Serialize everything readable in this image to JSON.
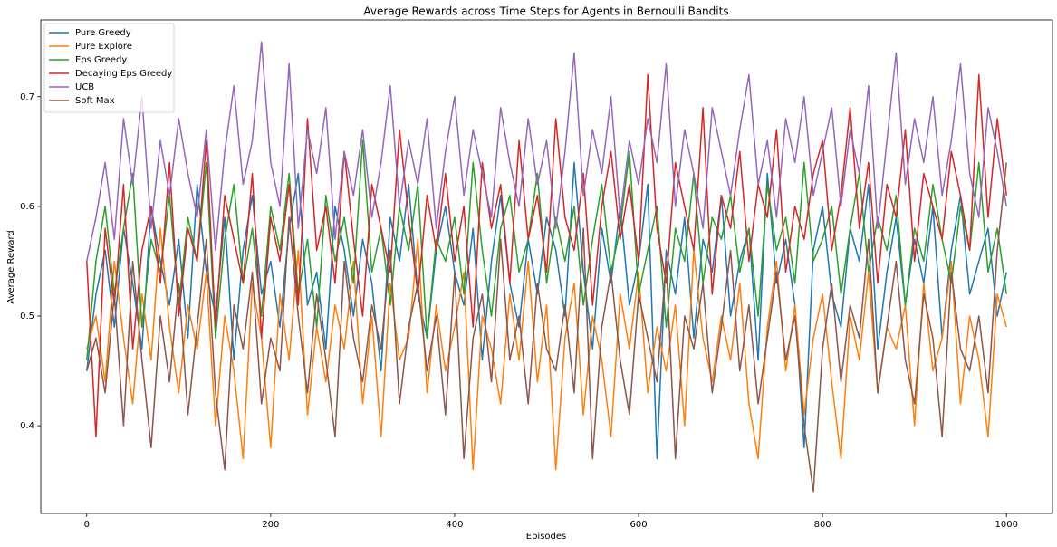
{
  "chart_data": {
    "type": "line",
    "title": "Average Rewards across Time Steps for Agents in Bernoulli Bandits",
    "xlabel": "Episodes",
    "ylabel": "Average Reward",
    "xlim": [
      -50,
      1050
    ],
    "ylim": [
      0.32,
      0.77
    ],
    "xticks": [
      0,
      200,
      400,
      600,
      800,
      1000
    ],
    "yticks": [
      0.4,
      0.5,
      0.6,
      0.7
    ],
    "legend": "upper left",
    "x": [
      0,
      10,
      20,
      30,
      40,
      50,
      60,
      70,
      80,
      90,
      100,
      110,
      120,
      130,
      140,
      150,
      160,
      170,
      180,
      190,
      200,
      210,
      220,
      230,
      240,
      250,
      260,
      270,
      280,
      290,
      300,
      310,
      320,
      330,
      340,
      350,
      360,
      370,
      380,
      390,
      400,
      410,
      420,
      430,
      440,
      450,
      460,
      470,
      480,
      490,
      500,
      510,
      520,
      530,
      540,
      550,
      560,
      570,
      580,
      590,
      600,
      610,
      620,
      630,
      640,
      650,
      660,
      670,
      680,
      690,
      700,
      710,
      720,
      730,
      740,
      750,
      760,
      770,
      780,
      790,
      800,
      810,
      820,
      830,
      840,
      850,
      860,
      870,
      880,
      890,
      900,
      910,
      920,
      930,
      940,
      950,
      960,
      970,
      980,
      990,
      1000
    ],
    "series": [
      {
        "name": "Pure Greedy",
        "color": "#1f77b4",
        "values": [
          0.45,
          0.52,
          0.56,
          0.49,
          0.58,
          0.53,
          0.47,
          0.6,
          0.55,
          0.51,
          0.57,
          0.48,
          0.62,
          0.54,
          0.5,
          0.59,
          0.46,
          0.56,
          0.61,
          0.52,
          0.55,
          0.49,
          0.58,
          0.63,
          0.51,
          0.54,
          0.47,
          0.6,
          0.56,
          0.5,
          0.57,
          0.53,
          0.45,
          0.59,
          0.55,
          0.62,
          0.52,
          0.48,
          0.56,
          0.6,
          0.54,
          0.51,
          0.58,
          0.46,
          0.55,
          0.61,
          0.53,
          0.49,
          0.57,
          0.52,
          0.59,
          0.56,
          0.5,
          0.64,
          0.54,
          0.47,
          0.58,
          0.53,
          0.6,
          0.51,
          0.55,
          0.62,
          0.37,
          0.56,
          0.52,
          0.59,
          0.48,
          0.57,
          0.54,
          0.61,
          0.5,
          0.55,
          0.58,
          0.46,
          0.63,
          0.53,
          0.57,
          0.51,
          0.38,
          0.56,
          0.6,
          0.52,
          0.49,
          0.58,
          0.55,
          0.62,
          0.47,
          0.54,
          0.59,
          0.51,
          0.57,
          0.53,
          0.6,
          0.48,
          0.56,
          0.61,
          0.52,
          0.55,
          0.58,
          0.5,
          0.54
        ]
      },
      {
        "name": "Pure Explore",
        "color": "#ff7f0e",
        "values": [
          0.47,
          0.5,
          0.44,
          0.55,
          0.48,
          0.42,
          0.52,
          0.46,
          0.58,
          0.49,
          0.43,
          0.51,
          0.47,
          0.54,
          0.4,
          0.5,
          0.45,
          0.37,
          0.53,
          0.48,
          0.38,
          0.52,
          0.46,
          0.56,
          0.41,
          0.49,
          0.44,
          0.51,
          0.47,
          0.55,
          0.42,
          0.5,
          0.39,
          0.53,
          0.46,
          0.48,
          0.57,
          0.43,
          0.51,
          0.45,
          0.49,
          0.54,
          0.36,
          0.5,
          0.47,
          0.42,
          0.52,
          0.46,
          0.55,
          0.44,
          0.51,
          0.36,
          0.48,
          0.53,
          0.41,
          0.5,
          0.46,
          0.39,
          0.52,
          0.47,
          0.54,
          0.43,
          0.49,
          0.45,
          0.51,
          0.4,
          0.56,
          0.48,
          0.44,
          0.5,
          0.46,
          0.53,
          0.42,
          0.37,
          0.49,
          0.55,
          0.45,
          0.51,
          0.41,
          0.48,
          0.52,
          0.44,
          0.37,
          0.5,
          0.46,
          0.54,
          0.43,
          0.49,
          0.47,
          0.51,
          0.4,
          0.53,
          0.45,
          0.48,
          0.55,
          0.42,
          0.5,
          0.46,
          0.39,
          0.52,
          0.49
        ]
      },
      {
        "name": "Eps Greedy",
        "color": "#2ca02c",
        "values": [
          0.46,
          0.55,
          0.6,
          0.52,
          0.58,
          0.63,
          0.49,
          0.57,
          0.54,
          0.61,
          0.51,
          0.59,
          0.55,
          0.64,
          0.48,
          0.57,
          0.62,
          0.53,
          0.58,
          0.5,
          0.6,
          0.56,
          0.63,
          0.52,
          0.57,
          0.49,
          0.61,
          0.55,
          0.59,
          0.53,
          0.66,
          0.54,
          0.58,
          0.51,
          0.6,
          0.56,
          0.62,
          0.48,
          0.57,
          0.55,
          0.59,
          0.52,
          0.64,
          0.56,
          0.5,
          0.58,
          0.61,
          0.54,
          0.57,
          0.63,
          0.53,
          0.59,
          0.55,
          0.6,
          0.51,
          0.57,
          0.62,
          0.54,
          0.58,
          0.65,
          0.52,
          0.56,
          0.6,
          0.49,
          0.58,
          0.55,
          0.63,
          0.53,
          0.59,
          0.57,
          0.61,
          0.54,
          0.58,
          0.5,
          0.62,
          0.56,
          0.59,
          0.53,
          0.64,
          0.55,
          0.57,
          0.6,
          0.52,
          0.58,
          0.63,
          0.54,
          0.59,
          0.56,
          0.61,
          0.51,
          0.58,
          0.55,
          0.62,
          0.57,
          0.53,
          0.6,
          0.56,
          0.64,
          0.54,
          0.58,
          0.52
        ]
      },
      {
        "name": "Decaying Eps Greedy",
        "color": "#d62728",
        "values": [
          0.55,
          0.39,
          0.58,
          0.51,
          0.62,
          0.47,
          0.56,
          0.6,
          0.53,
          0.64,
          0.5,
          0.58,
          0.55,
          0.66,
          0.49,
          0.61,
          0.57,
          0.53,
          0.63,
          0.48,
          0.59,
          0.55,
          0.62,
          0.51,
          0.68,
          0.56,
          0.6,
          0.53,
          0.65,
          0.57,
          0.5,
          0.62,
          0.58,
          0.54,
          0.67,
          0.59,
          0.52,
          0.61,
          0.56,
          0.63,
          0.55,
          0.6,
          0.49,
          0.64,
          0.58,
          0.62,
          0.53,
          0.66,
          0.57,
          0.61,
          0.54,
          0.68,
          0.59,
          0.56,
          0.63,
          0.51,
          0.6,
          0.65,
          0.57,
          0.62,
          0.55,
          0.72,
          0.58,
          0.53,
          0.64,
          0.6,
          0.56,
          0.69,
          0.52,
          0.61,
          0.58,
          0.65,
          0.55,
          0.62,
          0.59,
          0.67,
          0.54,
          0.6,
          0.57,
          0.63,
          0.66,
          0.56,
          0.61,
          0.69,
          0.58,
          0.64,
          0.53,
          0.62,
          0.59,
          0.67,
          0.55,
          0.63,
          0.6,
          0.57,
          0.65,
          0.61,
          0.56,
          0.72,
          0.59,
          0.68,
          0.61
        ]
      },
      {
        "name": "UCB",
        "color": "#9467bd",
        "values": [
          0.55,
          0.59,
          0.64,
          0.57,
          0.68,
          0.62,
          0.7,
          0.58,
          0.66,
          0.61,
          0.68,
          0.63,
          0.59,
          0.67,
          0.56,
          0.65,
          0.71,
          0.62,
          0.66,
          0.75,
          0.64,
          0.6,
          0.73,
          0.58,
          0.67,
          0.63,
          0.69,
          0.57,
          0.65,
          0.61,
          0.67,
          0.59,
          0.64,
          0.71,
          0.6,
          0.66,
          0.62,
          0.68,
          0.58,
          0.65,
          0.7,
          0.61,
          0.67,
          0.63,
          0.59,
          0.69,
          0.64,
          0.6,
          0.68,
          0.62,
          0.66,
          0.58,
          0.65,
          0.74,
          0.61,
          0.67,
          0.63,
          0.7,
          0.59,
          0.66,
          0.62,
          0.68,
          0.64,
          0.73,
          0.6,
          0.67,
          0.63,
          0.58,
          0.69,
          0.65,
          0.61,
          0.67,
          0.72,
          0.62,
          0.66,
          0.59,
          0.68,
          0.64,
          0.7,
          0.61,
          0.65,
          0.69,
          0.6,
          0.67,
          0.63,
          0.71,
          0.58,
          0.66,
          0.74,
          0.62,
          0.68,
          0.64,
          0.7,
          0.61,
          0.66,
          0.73,
          0.63,
          0.59,
          0.69,
          0.65,
          0.6
        ]
      },
      {
        "name": "Soft Max",
        "color": "#8c564b",
        "values": [
          0.45,
          0.48,
          0.43,
          0.52,
          0.4,
          0.55,
          0.46,
          0.38,
          0.5,
          0.44,
          0.53,
          0.41,
          0.49,
          0.57,
          0.43,
          0.36,
          0.51,
          0.47,
          0.54,
          0.42,
          0.48,
          0.45,
          0.59,
          0.5,
          0.43,
          0.52,
          0.46,
          0.39,
          0.55,
          0.48,
          0.44,
          0.51,
          0.47,
          0.56,
          0.42,
          0.49,
          0.53,
          0.45,
          0.5,
          0.41,
          0.54,
          0.37,
          0.48,
          0.52,
          0.44,
          0.57,
          0.46,
          0.5,
          0.42,
          0.53,
          0.47,
          0.45,
          0.51,
          0.43,
          0.58,
          0.37,
          0.49,
          0.54,
          0.46,
          0.41,
          0.52,
          0.48,
          0.44,
          0.55,
          0.37,
          0.5,
          0.47,
          0.53,
          0.43,
          0.49,
          0.56,
          0.45,
          0.51,
          0.42,
          0.48,
          0.54,
          0.46,
          0.5,
          0.4,
          0.34,
          0.47,
          0.53,
          0.44,
          0.51,
          0.48,
          0.57,
          0.43,
          0.49,
          0.55,
          0.46,
          0.42,
          0.52,
          0.48,
          0.39,
          0.54,
          0.47,
          0.45,
          0.5,
          0.43,
          0.56,
          0.64
        ]
      }
    ]
  }
}
